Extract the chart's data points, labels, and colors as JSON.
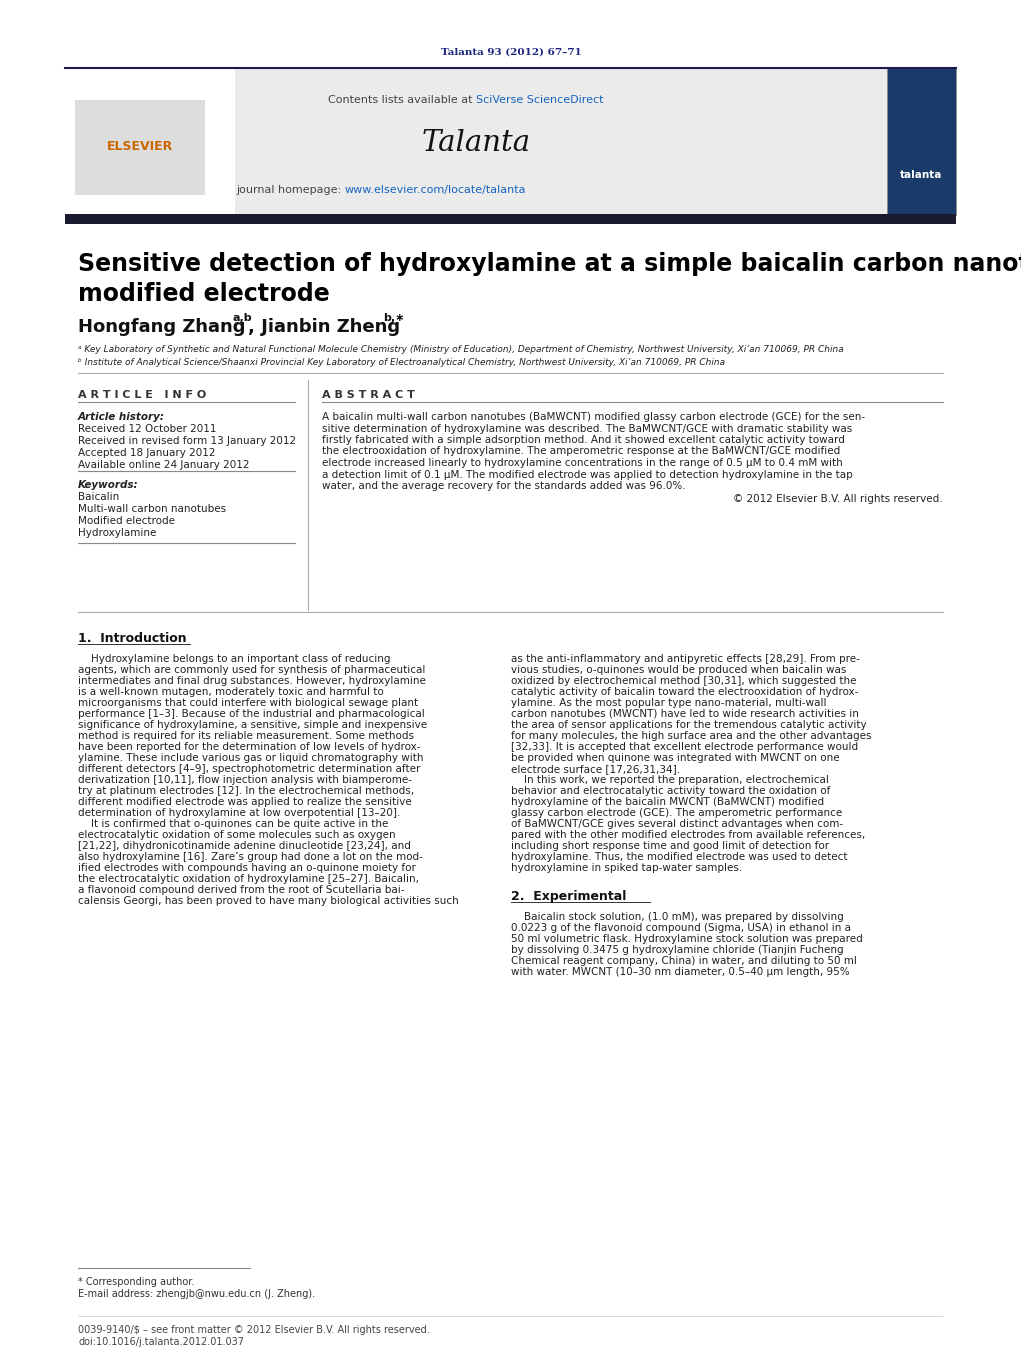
{
  "page_width": 10.21,
  "page_height": 13.51,
  "bg_color": "#ffffff",
  "journal_ref": "Talanta 93 (2012) 67–71",
  "journal_ref_color": "#1a237e",
  "header_bg": "#e8e8e8",
  "contents_text": "Contents lists available at ",
  "sciverse_text": "SciVerse ScienceDirect",
  "sciverse_color": "#1565c0",
  "journal_name": "Talanta",
  "journal_homepage_prefix": "journal homepage: ",
  "journal_url": "www.elsevier.com/locate/talanta",
  "journal_url_color": "#1565c0",
  "dark_bar_color": "#1a1a2e",
  "article_title": "Sensitive detection of hydroxylamine at a simple baicalin carbon nanotubes\nmodified electrode",
  "article_title_color": "#000000",
  "affil_a": "ᵃ Key Laboratory of Synthetic and Natural Functional Molecule Chemistry (Ministry of Education), Department of Chemistry, Northwest University, Xi’an 710069, PR China",
  "affil_b": "ᵇ Institute of Analytical Science/Shaanxi Provincial Key Laboratory of Electroanalytical Chemistry, Northwest University, Xi’an 710069, PR China",
  "article_info_header": "A R T I C L E   I N F O",
  "abstract_header": "A B S T R A C T",
  "article_history_label": "Article history:",
  "received1": "Received 12 October 2011",
  "received2": "Received in revised form 13 January 2012",
  "accepted": "Accepted 18 January 2012",
  "available": "Available online 24 January 2012",
  "keywords_label": "Keywords:",
  "keyword1": "Baicalin",
  "keyword2": "Multi-wall carbon nanotubes",
  "keyword3": "Modified electrode",
  "keyword4": "Hydroxylamine",
  "copyright": "© 2012 Elsevier B.V. All rights reserved.",
  "intro_header": "1.  Introduction",
  "section2_header": "2.  Experimental",
  "footnote_star": "* Corresponding author.",
  "footnote_email": "E-mail address: zhengjb@nwu.edu.cn (J. Zheng).",
  "footer_line1": "0039-9140/$ – see front matter © 2012 Elsevier B.V. All rights reserved.",
  "footer_line2": "doi:10.1016/j.talanta.2012.01.037",
  "abstract_lines": [
    "A baicalin multi-wall carbon nanotubes (BaMWCNT) modified glassy carbon electrode (GCE) for the sen-",
    "sitive determination of hydroxylamine was described. The BaMWCNT/GCE with dramatic stability was",
    "firstly fabricated with a simple adsorption method. And it showed excellent catalytic activity toward",
    "the electrooxidation of hydroxylamine. The amperometric response at the BaMWCNT/GCE modified",
    "electrode increased linearly to hydroxylamine concentrations in the range of 0.5 μM to 0.4 mM with",
    "a detection limit of 0.1 μM. The modified electrode was applied to detection hydroxylamine in the tap",
    "water, and the average recovery for the standards added was 96.0%."
  ],
  "intro_col1_lines": [
    "    Hydroxylamine belongs to an important class of reducing",
    "agents, which are commonly used for synthesis of pharmaceutical",
    "intermediates and final drug substances. However, hydroxylamine",
    "is a well-known mutagen, moderately toxic and harmful to",
    "microorganisms that could interfere with biological sewage plant",
    "performance [1–3]. Because of the industrial and pharmacological",
    "significance of hydroxylamine, a sensitive, simple and inexpensive",
    "method is required for its reliable measurement. Some methods",
    "have been reported for the determination of low levels of hydrox-",
    "ylamine. These include various gas or liquid chromatography with",
    "different detectors [4–9], spectrophotometric determination after",
    "derivatization [10,11], flow injection analysis with biamperome-",
    "try at platinum electrodes [12]. In the electrochemical methods,",
    "different modified electrode was applied to realize the sensitive",
    "determination of hydroxylamine at low overpotential [13–20].",
    "    It is confirmed that o-quinones can be quite active in the",
    "electrocatalytic oxidation of some molecules such as oxygen",
    "[21,22], dihydronicotinamide adenine dinucleotide [23,24], and",
    "also hydroxylamine [16]. Zare’s group had done a lot on the mod-",
    "ified electrodes with compounds having an o-quinone moiety for",
    "the electrocatalytic oxidation of hydroxylamine [25–27]. Baicalin,",
    "a flavonoid compound derived from the root of Scutellaria bai-",
    "calensis Georgi, has been proved to have many biological activities such"
  ],
  "intro_col2_lines": [
    "as the anti-inflammatory and antipyretic effects [28,29]. From pre-",
    "vious studies, o-quinones would be produced when baicalin was",
    "oxidized by electrochemical method [30,31], which suggested the",
    "catalytic activity of baicalin toward the electrooxidation of hydrox-",
    "ylamine. As the most popular type nano-material, multi-wall",
    "carbon nanotubes (MWCNT) have led to wide research activities in",
    "the area of sensor applications for the tremendous catalytic activity",
    "for many molecules, the high surface area and the other advantages",
    "[32,33]. It is accepted that excellent electrode performance would",
    "be provided when quinone was integrated with MWCNT on one",
    "electrode surface [17,26,31,34].",
    "    In this work, we reported the preparation, electrochemical",
    "behavior and electrocatalytic activity toward the oxidation of",
    "hydroxylamine of the baicalin MWCNT (BaMWCNT) modified",
    "glassy carbon electrode (GCE). The amperometric performance",
    "of BaMWCNT/GCE gives several distinct advantages when com-",
    "pared with the other modified electrodes from available references,",
    "including short response time and good limit of detection for",
    "hydroxylamine. Thus, the modified electrode was used to detect",
    "hydroxylamine in spiked tap-water samples."
  ],
  "section2_lines": [
    "    Baicalin stock solution, (1.0 mM), was prepared by dissolving",
    "0.0223 g of the flavonoid compound (Sigma, USA) in ethanol in a",
    "50 ml volumetric flask. Hydroxylamine stock solution was prepared",
    "by dissolving 0.3475 g hydroxylamine chloride (Tianjin Fucheng",
    "Chemical reagent company, China) in water, and diluting to 50 ml",
    "with water. MWCNT (10–30 nm diameter, 0.5–40 μm length, 95%"
  ]
}
